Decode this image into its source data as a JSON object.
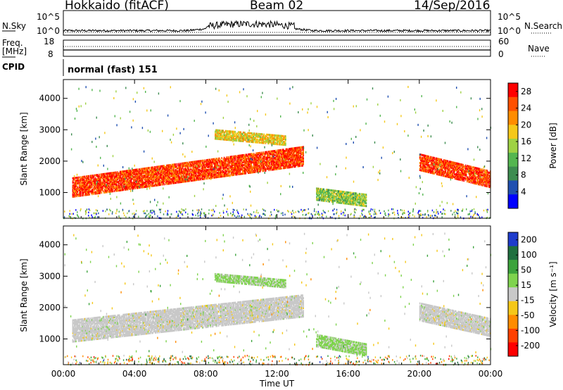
{
  "header": {
    "station": "Hokkaido (fitACF)",
    "beam": "Beam 02",
    "date": "14/Sep/2016"
  },
  "strips": {
    "nsky_label": "N.Sky",
    "nsearch_label": "N.Search",
    "freq_label_1": "Freq.",
    "freq_label_2": "[MHz]",
    "nave_label": "Nave",
    "cpid_label": "CPID",
    "cpid_text": "normal (fast) 151",
    "noise_ticks": [
      "10^5",
      "10^0"
    ],
    "freq_ticks": [
      "18",
      "8"
    ],
    "nave_ticks": [
      "60",
      "0"
    ]
  },
  "colors": {
    "power": [
      "#0000ff",
      "#1f4fb0",
      "#3d8c50",
      "#54b650",
      "#9fd244",
      "#f5c819",
      "#ff8c00",
      "#ff5000",
      "#ff0000"
    ],
    "velocity": [
      "#1e3ccc",
      "#1f6f3f",
      "#3ca33c",
      "#7fd34e",
      "#c8c8c8",
      "#f5c819",
      "#ff8c00",
      "#ff4000",
      "#ff0000"
    ]
  },
  "chart_data": [
    {
      "type": "heatmap",
      "name": "power",
      "xlabel": "Time UT",
      "ylabel": "Slant Range [km]",
      "colorbar_label": "Power [dB]",
      "colorbar_ticks": [
        "28",
        "24",
        "20",
        "16",
        "12",
        "8",
        "4"
      ],
      "colorbar_range": [
        0,
        30
      ],
      "x_ticks": [
        "00:00",
        "04:00",
        "08:00",
        "12:00",
        "16:00",
        "20:00",
        "00:00"
      ],
      "y_ticks": [
        "4000",
        "3000",
        "2000",
        "1000"
      ],
      "xlim_hours": [
        0,
        24
      ],
      "ylim_km": [
        180,
        4600
      ],
      "regions": [
        {
          "t": [
            0.5,
            13.5
          ],
          "center_km_start": 1200,
          "center_km_end": 2200,
          "width_km": 600,
          "value": 26
        },
        {
          "t": [
            20.0,
            24.0
          ],
          "center_km_start": 2000,
          "center_km_end": 1450,
          "width_km": 500,
          "value": 26
        },
        {
          "t": [
            14.2,
            17.0
          ],
          "center_km_start": 1000,
          "center_km_end": 800,
          "width_km": 400,
          "value": 14
        },
        {
          "t": [
            8.5,
            12.5
          ],
          "center_km_start": 2900,
          "center_km_end": 2700,
          "width_km": 300,
          "value": 18
        }
      ]
    },
    {
      "type": "heatmap",
      "name": "velocity",
      "xlabel": "Time UT",
      "ylabel": "Slant Range [km]",
      "colorbar_label": "Velocity [m s^-1]",
      "colorbar_ticks": [
        "200",
        "100",
        "50",
        "15",
        "-15",
        "-50",
        "-100",
        "-200"
      ],
      "colorbar_range": [
        -250,
        250
      ],
      "x_ticks": [
        "00:00",
        "04:00",
        "08:00",
        "12:00",
        "16:00",
        "20:00",
        "00:00"
      ],
      "y_ticks": [
        "4000",
        "3000",
        "2000",
        "1000"
      ],
      "xlim_hours": [
        0,
        24
      ],
      "ylim_km": [
        180,
        4600
      ],
      "regions": [
        {
          "t": [
            0.5,
            13.5
          ],
          "center_km_start": 1300,
          "center_km_end": 2100,
          "width_km": 700,
          "value": 0
        },
        {
          "t": [
            20.0,
            24.0
          ],
          "center_km_start": 1900,
          "center_km_end": 1400,
          "width_km": 550,
          "value": 0
        },
        {
          "t": [
            14.2,
            17.0
          ],
          "center_km_start": 1000,
          "center_km_end": 700,
          "width_km": 400,
          "value": 40
        },
        {
          "t": [
            8.5,
            12.5
          ],
          "center_km_start": 3000,
          "center_km_end": 2800,
          "width_km": 250,
          "value": 40
        }
      ]
    }
  ]
}
